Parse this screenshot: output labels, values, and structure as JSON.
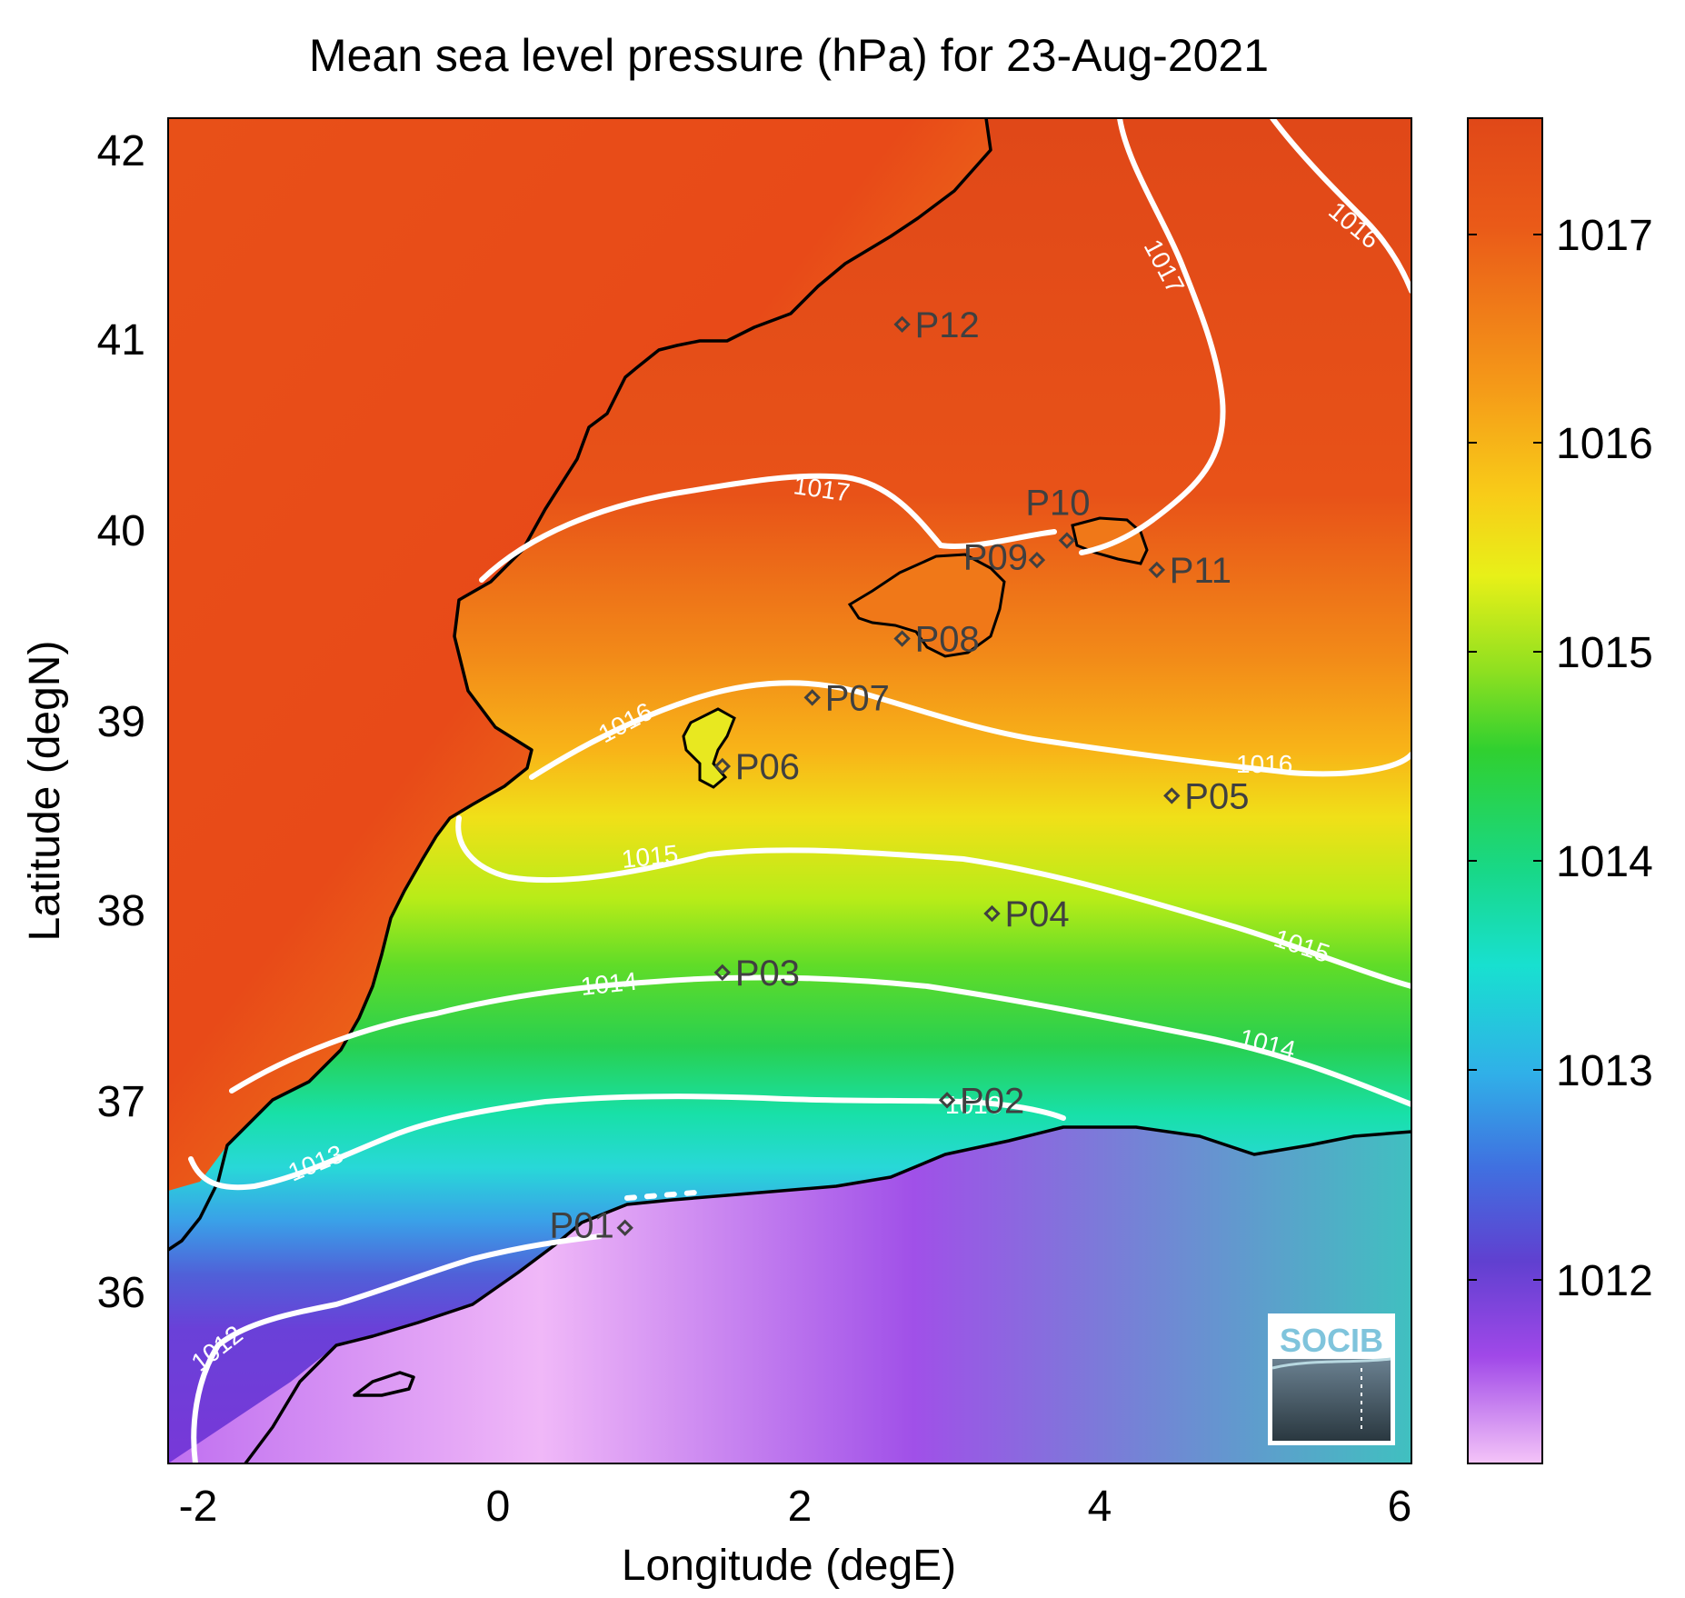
{
  "title": "Mean sea level pressure (hPa) for 23-Aug-2021",
  "xlabel": "Longitude (degE)",
  "ylabel": "Latitude (degN)",
  "xticks": [
    "-2",
    "0",
    "2",
    "4",
    "6"
  ],
  "yticks": [
    "42",
    "41",
    "40",
    "39",
    "38",
    "37",
    "36"
  ],
  "colorbar": {
    "ticks": [
      "1017",
      "1016",
      "1015",
      "1014",
      "1013",
      "1012"
    ],
    "colors": [
      "#e04818",
      "#f07818",
      "#f8a818",
      "#f8d818",
      "#e0f018",
      "#80e020",
      "#28d040",
      "#18e0a0",
      "#20d8e0",
      "#3090e8",
      "#6048d0",
      "#8030e0",
      "#c060f0",
      "#f0b8f8"
    ]
  },
  "logo": {
    "text": "SOCIB"
  },
  "map_data": {
    "extent": {
      "lon": [
        -2.2,
        6.1
      ],
      "lat": [
        35.3,
        42.15
      ]
    },
    "stations": [
      {
        "id": "P01",
        "lon": 0.85,
        "lat": 36.5
      },
      {
        "id": "P02",
        "lon": 3.0,
        "lat": 37.15
      },
      {
        "id": "P03",
        "lon": 1.5,
        "lat": 37.8
      },
      {
        "id": "P04",
        "lon": 3.3,
        "lat": 38.1
      },
      {
        "id": "P05",
        "lon": 4.5,
        "lat": 38.7
      },
      {
        "id": "P06",
        "lon": 1.5,
        "lat": 38.85
      },
      {
        "id": "P07",
        "lon": 2.1,
        "lat": 39.2
      },
      {
        "id": "P08",
        "lon": 2.7,
        "lat": 39.5
      },
      {
        "id": "P09",
        "lon": 3.6,
        "lat": 39.9
      },
      {
        "id": "P10",
        "lon": 3.8,
        "lat": 40.0
      },
      {
        "id": "P11",
        "lon": 4.4,
        "lat": 39.85
      },
      {
        "id": "P12",
        "lon": 2.7,
        "lat": 41.1
      }
    ],
    "contour_labels": [
      "1017",
      "1017",
      "1016",
      "1016",
      "1016",
      "1015",
      "1015",
      "1014",
      "1014",
      "1013",
      "1013",
      "1012"
    ]
  }
}
